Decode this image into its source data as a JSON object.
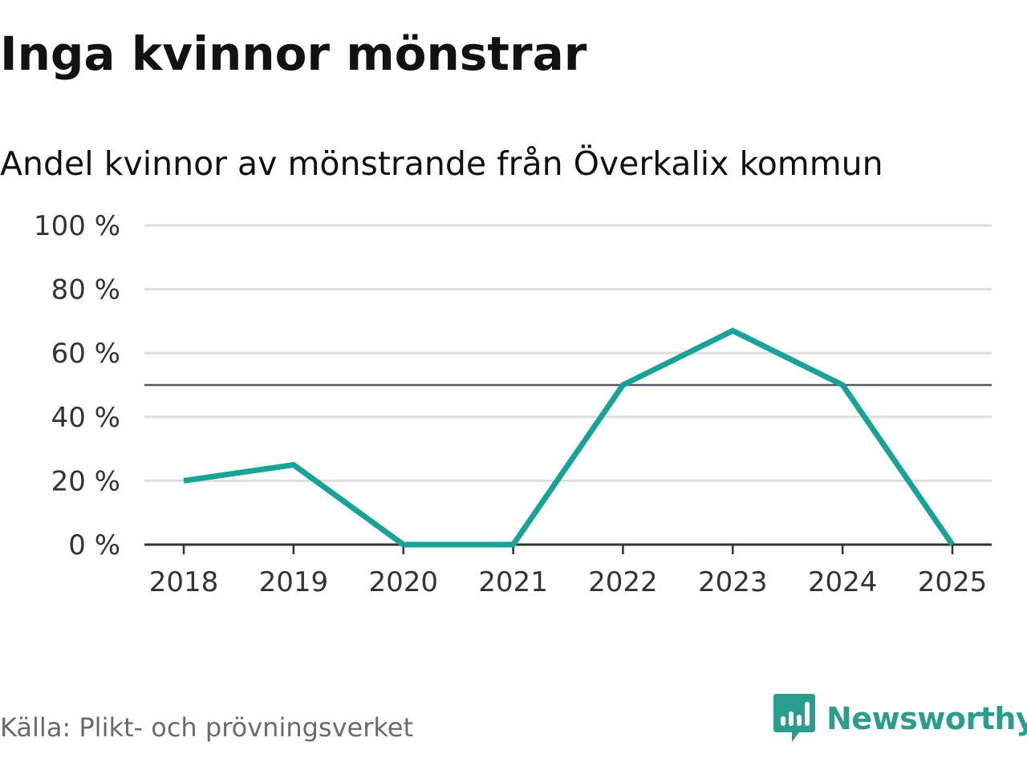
{
  "title": "Inga kvinnor mönstrar",
  "subtitle": "Andel kvinnor av mönstrande från Överkalix kommun",
  "source": "Källa: Plikt- och prövningsverket",
  "brand": {
    "name": "Newsworthy",
    "logo_icon": "bar-chart-speech-bubble-icon",
    "color": "#2a9d8f"
  },
  "colors": {
    "line": "#17a398",
    "reference_line": "#55555f",
    "grid": "#dddddd",
    "axis": "#333333"
  },
  "chart_data": {
    "type": "line",
    "title": "Inga kvinnor mönstrar",
    "subtitle": "Andel kvinnor av mönstrande från Överkalix kommun",
    "categories": [
      "2018",
      "2019",
      "2020",
      "2021",
      "2022",
      "2023",
      "2024",
      "2025"
    ],
    "series": [
      {
        "values": [
          20,
          25,
          0,
          0,
          50,
          67,
          50,
          0
        ]
      }
    ],
    "ylim": [
      0,
      100
    ],
    "yticks": [
      0,
      20,
      40,
      60,
      80,
      100
    ],
    "ytick_labels": [
      "0 %",
      "20 %",
      "40 %",
      "60 %",
      "80 %",
      "100 %"
    ],
    "reference_line": 50,
    "grid": true,
    "xlabel": "",
    "ylabel": ""
  }
}
